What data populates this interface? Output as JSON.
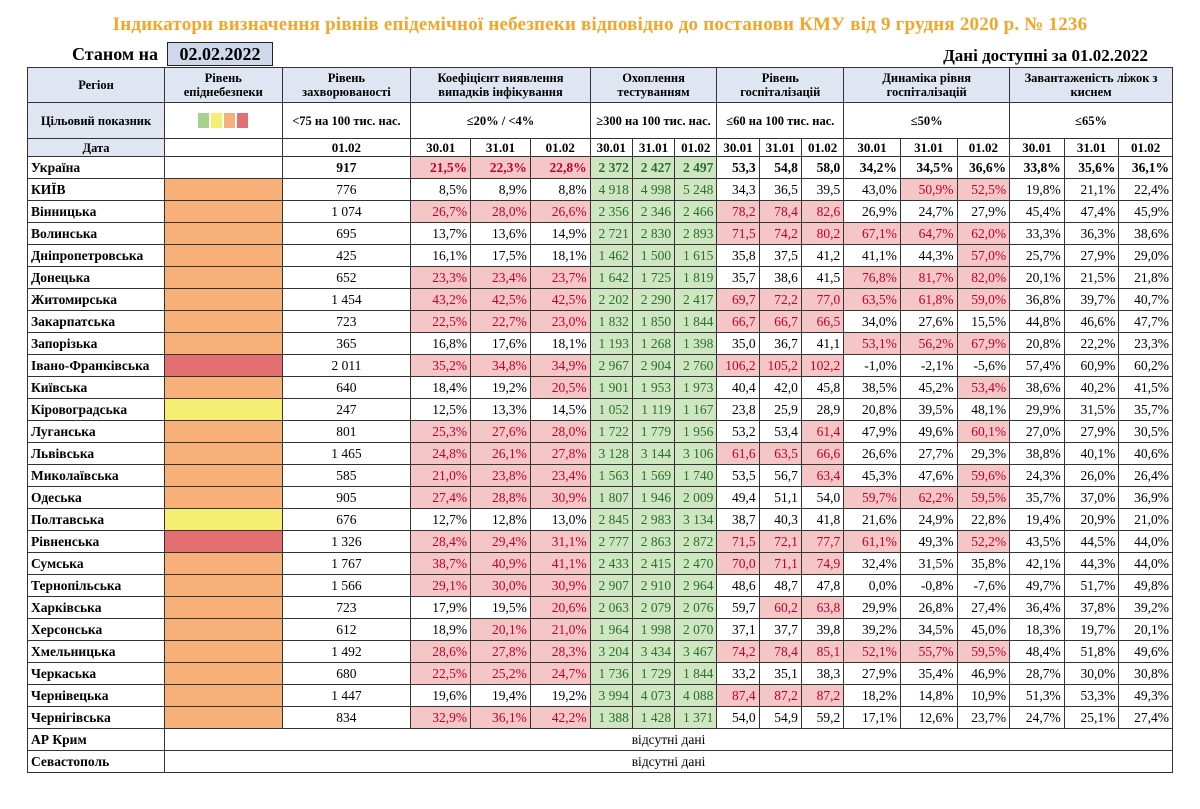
{
  "title": "Індикатори визначення рівнів епідемічної небезпеки відповідно до постанови КМУ від 9 грудня 2020 р. № 1236",
  "asof_label": "Станом на",
  "asof_date": "02.02.2022",
  "available": "Дані доступні за  01.02.2022",
  "colors": {
    "orange": "#f6b078",
    "red": "#e46f72",
    "yellow": "#f4ef72",
    "green": "#a8d18d",
    "pink": "#f4c6c6"
  },
  "header": {
    "region": "Регіон",
    "level": "Рівень епіднебезпеки",
    "morbidity": "Рівень захворюваності",
    "detection": "Коефіцієнт виявлення випадків інфікування",
    "testing": "Охоплення тестуванням",
    "hosp": "Рівень госпіталізацій",
    "hosp_dyn": "Динаміка рівня госпіталізацій",
    "beds": "Завантаженість ліжок з киснем",
    "target_label": "Цільовий показник",
    "morbidity_target": "<75 на 100 тис. нас.",
    "detection_target": "≤20% / <4%",
    "testing_target": "≥300 на 100 тис. нас.",
    "hosp_target": "≤60 на 100 тис. нас.",
    "hosp_dyn_target": "≤50%",
    "beds_target": "≤65%",
    "date_label": "Дата",
    "d_0102": "01.02",
    "d_3001": "30.01",
    "d_3101": "31.01"
  },
  "legend": [
    "#a8d18d",
    "#f4ef72",
    "#f6b078",
    "#e46f72"
  ],
  "rows": [
    {
      "name": "Україна",
      "level": "white",
      "m": "917",
      "det": [
        "21,5%",
        "22,3%",
        "22,8%"
      ],
      "dr": [
        1,
        1,
        1
      ],
      "tst": [
        "2 372",
        "2 427",
        "2 497"
      ],
      "tg": [
        1,
        1,
        1
      ],
      "h": [
        "53,3",
        "54,8",
        "58,0"
      ],
      "hr": [
        0,
        0,
        0
      ],
      "hd": [
        "34,2%",
        "34,5%",
        "36,6%"
      ],
      "hdr": [
        0,
        0,
        0
      ],
      "b": [
        "33,8%",
        "35,6%",
        "36,1%"
      ]
    },
    {
      "name": "КИЇВ",
      "level": "orange",
      "m": "776",
      "det": [
        "8,5%",
        "8,9%",
        "8,8%"
      ],
      "dr": [
        0,
        0,
        0
      ],
      "tst": [
        "4 918",
        "4 998",
        "5 248"
      ],
      "tg": [
        1,
        1,
        1
      ],
      "h": [
        "34,3",
        "36,5",
        "39,5"
      ],
      "hr": [
        0,
        0,
        0
      ],
      "hd": [
        "43,0%",
        "50,9%",
        "52,5%"
      ],
      "hdr": [
        0,
        1,
        1
      ],
      "b": [
        "19,8%",
        "21,1%",
        "22,4%"
      ]
    },
    {
      "name": "Вінницька",
      "level": "orange",
      "m": "1 074",
      "det": [
        "26,7%",
        "28,0%",
        "26,6%"
      ],
      "dr": [
        1,
        1,
        1
      ],
      "tst": [
        "2 356",
        "2 346",
        "2 466"
      ],
      "tg": [
        1,
        1,
        1
      ],
      "h": [
        "78,2",
        "78,4",
        "82,6"
      ],
      "hr": [
        1,
        1,
        1
      ],
      "hd": [
        "26,9%",
        "24,7%",
        "27,9%"
      ],
      "hdr": [
        0,
        0,
        0
      ],
      "b": [
        "45,4%",
        "47,4%",
        "45,9%"
      ]
    },
    {
      "name": "Волинська",
      "level": "orange",
      "m": "695",
      "det": [
        "13,7%",
        "13,6%",
        "14,9%"
      ],
      "dr": [
        0,
        0,
        0
      ],
      "tst": [
        "2 721",
        "2 830",
        "2 893"
      ],
      "tg": [
        1,
        1,
        1
      ],
      "h": [
        "71,5",
        "74,2",
        "80,2"
      ],
      "hr": [
        1,
        1,
        1
      ],
      "hd": [
        "67,1%",
        "64,7%",
        "62,0%"
      ],
      "hdr": [
        1,
        1,
        1
      ],
      "b": [
        "33,3%",
        "36,3%",
        "38,6%"
      ]
    },
    {
      "name": "Дніпропетровська",
      "level": "orange",
      "m": "425",
      "det": [
        "16,1%",
        "17,5%",
        "18,1%"
      ],
      "dr": [
        0,
        0,
        0
      ],
      "tst": [
        "1 462",
        "1 500",
        "1 615"
      ],
      "tg": [
        1,
        1,
        1
      ],
      "h": [
        "35,8",
        "37,5",
        "41,2"
      ],
      "hr": [
        0,
        0,
        0
      ],
      "hd": [
        "41,1%",
        "44,3%",
        "57,0%"
      ],
      "hdr": [
        0,
        0,
        1
      ],
      "b": [
        "25,7%",
        "27,9%",
        "29,0%"
      ]
    },
    {
      "name": "Донецька",
      "level": "orange",
      "m": "652",
      "det": [
        "23,3%",
        "23,4%",
        "23,7%"
      ],
      "dr": [
        1,
        1,
        1
      ],
      "tst": [
        "1 642",
        "1 725",
        "1 819"
      ],
      "tg": [
        1,
        1,
        1
      ],
      "h": [
        "35,7",
        "38,6",
        "41,5"
      ],
      "hr": [
        0,
        0,
        0
      ],
      "hd": [
        "76,8%",
        "81,7%",
        "82,0%"
      ],
      "hdr": [
        1,
        1,
        1
      ],
      "b": [
        "20,1%",
        "21,5%",
        "21,8%"
      ]
    },
    {
      "name": "Житомирська",
      "level": "orange",
      "m": "1 454",
      "det": [
        "43,2%",
        "42,5%",
        "42,5%"
      ],
      "dr": [
        1,
        1,
        1
      ],
      "tst": [
        "2 202",
        "2 290",
        "2 417"
      ],
      "tg": [
        1,
        1,
        1
      ],
      "h": [
        "69,7",
        "72,2",
        "77,0"
      ],
      "hr": [
        1,
        1,
        1
      ],
      "hd": [
        "63,5%",
        "61,8%",
        "59,0%"
      ],
      "hdr": [
        1,
        1,
        1
      ],
      "b": [
        "36,8%",
        "39,7%",
        "40,7%"
      ]
    },
    {
      "name": "Закарпатська",
      "level": "orange",
      "m": "723",
      "det": [
        "22,5%",
        "22,7%",
        "23,0%"
      ],
      "dr": [
        1,
        1,
        1
      ],
      "tst": [
        "1 832",
        "1 850",
        "1 844"
      ],
      "tg": [
        1,
        1,
        1
      ],
      "h": [
        "66,7",
        "66,7",
        "66,5"
      ],
      "hr": [
        1,
        1,
        1
      ],
      "hd": [
        "34,0%",
        "27,6%",
        "15,5%"
      ],
      "hdr": [
        0,
        0,
        0
      ],
      "b": [
        "44,8%",
        "46,6%",
        "47,7%"
      ]
    },
    {
      "name": "Запорізька",
      "level": "orange",
      "m": "365",
      "det": [
        "16,8%",
        "17,6%",
        "18,1%"
      ],
      "dr": [
        0,
        0,
        0
      ],
      "tst": [
        "1 193",
        "1 268",
        "1 398"
      ],
      "tg": [
        1,
        1,
        1
      ],
      "h": [
        "35,0",
        "36,7",
        "41,1"
      ],
      "hr": [
        0,
        0,
        0
      ],
      "hd": [
        "53,1%",
        "56,2%",
        "67,9%"
      ],
      "hdr": [
        1,
        1,
        1
      ],
      "b": [
        "20,8%",
        "22,2%",
        "23,3%"
      ]
    },
    {
      "name": "Івано-Франківська",
      "level": "red",
      "m": "2 011",
      "det": [
        "35,2%",
        "34,8%",
        "34,9%"
      ],
      "dr": [
        1,
        1,
        1
      ],
      "tst": [
        "2 967",
        "2 904",
        "2 760"
      ],
      "tg": [
        1,
        1,
        1
      ],
      "h": [
        "106,2",
        "105,2",
        "102,2"
      ],
      "hr": [
        1,
        1,
        1
      ],
      "hd": [
        "-1,0%",
        "-2,1%",
        "-5,6%"
      ],
      "hdr": [
        0,
        0,
        0
      ],
      "b": [
        "57,4%",
        "60,9%",
        "60,2%"
      ]
    },
    {
      "name": "Київська",
      "level": "orange",
      "m": "640",
      "det": [
        "18,4%",
        "19,2%",
        "20,5%"
      ],
      "dr": [
        0,
        0,
        1
      ],
      "tst": [
        "1 901",
        "1 953",
        "1 973"
      ],
      "tg": [
        1,
        1,
        1
      ],
      "h": [
        "40,4",
        "42,0",
        "45,8"
      ],
      "hr": [
        0,
        0,
        0
      ],
      "hd": [
        "38,5%",
        "45,2%",
        "53,4%"
      ],
      "hdr": [
        0,
        0,
        1
      ],
      "b": [
        "38,6%",
        "40,2%",
        "41,5%"
      ]
    },
    {
      "name": "Кіровоградська",
      "level": "yellow",
      "m": "247",
      "det": [
        "12,5%",
        "13,3%",
        "14,5%"
      ],
      "dr": [
        0,
        0,
        0
      ],
      "tst": [
        "1 052",
        "1 119",
        "1 167"
      ],
      "tg": [
        1,
        1,
        1
      ],
      "h": [
        "23,8",
        "25,9",
        "28,9"
      ],
      "hr": [
        0,
        0,
        0
      ],
      "hd": [
        "20,8%",
        "39,5%",
        "48,1%"
      ],
      "hdr": [
        0,
        0,
        0
      ],
      "b": [
        "29,9%",
        "31,5%",
        "35,7%"
      ]
    },
    {
      "name": "Луганська",
      "level": "orange",
      "m": "801",
      "det": [
        "25,3%",
        "27,6%",
        "28,0%"
      ],
      "dr": [
        1,
        1,
        1
      ],
      "tst": [
        "1 722",
        "1 779",
        "1 956"
      ],
      "tg": [
        1,
        1,
        1
      ],
      "h": [
        "53,2",
        "53,4",
        "61,4"
      ],
      "hr": [
        0,
        0,
        1
      ],
      "hd": [
        "47,9%",
        "49,6%",
        "60,1%"
      ],
      "hdr": [
        0,
        0,
        1
      ],
      "b": [
        "27,0%",
        "27,9%",
        "30,5%"
      ]
    },
    {
      "name": "Львівська",
      "level": "orange",
      "m": "1 465",
      "det": [
        "24,8%",
        "26,1%",
        "27,8%"
      ],
      "dr": [
        1,
        1,
        1
      ],
      "tst": [
        "3 128",
        "3 144",
        "3 106"
      ],
      "tg": [
        1,
        1,
        1
      ],
      "h": [
        "61,6",
        "63,5",
        "66,6"
      ],
      "hr": [
        1,
        1,
        1
      ],
      "hd": [
        "26,6%",
        "27,7%",
        "29,3%"
      ],
      "hdr": [
        0,
        0,
        0
      ],
      "b": [
        "38,8%",
        "40,1%",
        "40,6%"
      ]
    },
    {
      "name": "Миколаївська",
      "level": "orange",
      "m": "585",
      "det": [
        "21,0%",
        "23,8%",
        "23,4%"
      ],
      "dr": [
        1,
        1,
        1
      ],
      "tst": [
        "1 563",
        "1 569",
        "1 740"
      ],
      "tg": [
        1,
        1,
        1
      ],
      "h": [
        "53,5",
        "56,7",
        "63,4"
      ],
      "hr": [
        0,
        0,
        1
      ],
      "hd": [
        "45,3%",
        "47,6%",
        "59,6%"
      ],
      "hdr": [
        0,
        0,
        1
      ],
      "b": [
        "24,3%",
        "26,0%",
        "26,4%"
      ]
    },
    {
      "name": "Одеська",
      "level": "orange",
      "m": "905",
      "det": [
        "27,4%",
        "28,8%",
        "30,9%"
      ],
      "dr": [
        1,
        1,
        1
      ],
      "tst": [
        "1 807",
        "1 946",
        "2 009"
      ],
      "tg": [
        1,
        1,
        1
      ],
      "h": [
        "49,4",
        "51,1",
        "54,0"
      ],
      "hr": [
        0,
        0,
        0
      ],
      "hd": [
        "59,7%",
        "62,2%",
        "59,5%"
      ],
      "hdr": [
        1,
        1,
        1
      ],
      "b": [
        "35,7%",
        "37,0%",
        "36,9%"
      ]
    },
    {
      "name": "Полтавська",
      "level": "yellow",
      "m": "676",
      "det": [
        "12,7%",
        "12,8%",
        "13,0%"
      ],
      "dr": [
        0,
        0,
        0
      ],
      "tst": [
        "2 845",
        "2 983",
        "3 134"
      ],
      "tg": [
        1,
        1,
        1
      ],
      "h": [
        "38,7",
        "40,3",
        "41,8"
      ],
      "hr": [
        0,
        0,
        0
      ],
      "hd": [
        "21,6%",
        "24,9%",
        "22,8%"
      ],
      "hdr": [
        0,
        0,
        0
      ],
      "b": [
        "19,4%",
        "20,9%",
        "21,0%"
      ]
    },
    {
      "name": "Рівненська",
      "level": "red",
      "m": "1 326",
      "det": [
        "28,4%",
        "29,4%",
        "31,1%"
      ],
      "dr": [
        1,
        1,
        1
      ],
      "tst": [
        "2 777",
        "2 863",
        "2 872"
      ],
      "tg": [
        1,
        1,
        1
      ],
      "h": [
        "71,5",
        "72,1",
        "77,7"
      ],
      "hr": [
        1,
        1,
        1
      ],
      "hd": [
        "61,1%",
        "49,3%",
        "52,2%"
      ],
      "hdr": [
        1,
        0,
        1
      ],
      "b": [
        "43,5%",
        "44,5%",
        "44,0%"
      ]
    },
    {
      "name": "Сумська",
      "level": "orange",
      "m": "1 767",
      "det": [
        "38,7%",
        "40,9%",
        "41,1%"
      ],
      "dr": [
        1,
        1,
        1
      ],
      "tst": [
        "2 433",
        "2 415",
        "2 470"
      ],
      "tg": [
        1,
        1,
        1
      ],
      "h": [
        "70,0",
        "71,1",
        "74,9"
      ],
      "hr": [
        1,
        1,
        1
      ],
      "hd": [
        "32,4%",
        "31,5%",
        "35,8%"
      ],
      "hdr": [
        0,
        0,
        0
      ],
      "b": [
        "42,1%",
        "44,3%",
        "44,0%"
      ]
    },
    {
      "name": "Тернопільська",
      "level": "orange",
      "m": "1 566",
      "det": [
        "29,1%",
        "30,0%",
        "30,9%"
      ],
      "dr": [
        1,
        1,
        1
      ],
      "tst": [
        "2 907",
        "2 910",
        "2 964"
      ],
      "tg": [
        1,
        1,
        1
      ],
      "h": [
        "48,6",
        "48,7",
        "47,8"
      ],
      "hr": [
        0,
        0,
        0
      ],
      "hd": [
        "0,0%",
        "-0,8%",
        "-7,6%"
      ],
      "hdr": [
        0,
        0,
        0
      ],
      "b": [
        "49,7%",
        "51,7%",
        "49,8%"
      ]
    },
    {
      "name": "Харківська",
      "level": "orange",
      "m": "723",
      "det": [
        "17,9%",
        "19,5%",
        "20,6%"
      ],
      "dr": [
        0,
        0,
        1
      ],
      "tst": [
        "2 063",
        "2 079",
        "2 076"
      ],
      "tg": [
        1,
        1,
        1
      ],
      "h": [
        "59,7",
        "60,2",
        "63,8"
      ],
      "hr": [
        0,
        1,
        1
      ],
      "hd": [
        "29,9%",
        "26,8%",
        "27,4%"
      ],
      "hdr": [
        0,
        0,
        0
      ],
      "b": [
        "36,4%",
        "37,8%",
        "39,2%"
      ]
    },
    {
      "name": "Херсонська",
      "level": "orange",
      "m": "612",
      "det": [
        "18,9%",
        "20,1%",
        "21,0%"
      ],
      "dr": [
        0,
        1,
        1
      ],
      "tst": [
        "1 964",
        "1 998",
        "2 070"
      ],
      "tg": [
        1,
        1,
        1
      ],
      "h": [
        "37,1",
        "37,7",
        "39,8"
      ],
      "hr": [
        0,
        0,
        0
      ],
      "hd": [
        "39,2%",
        "34,5%",
        "45,0%"
      ],
      "hdr": [
        0,
        0,
        0
      ],
      "b": [
        "18,3%",
        "19,7%",
        "20,1%"
      ]
    },
    {
      "name": "Хмельницька",
      "level": "orange",
      "m": "1 492",
      "det": [
        "28,6%",
        "27,8%",
        "28,3%"
      ],
      "dr": [
        1,
        1,
        1
      ],
      "tst": [
        "3 204",
        "3 434",
        "3 467"
      ],
      "tg": [
        1,
        1,
        1
      ],
      "h": [
        "74,2",
        "78,4",
        "85,1"
      ],
      "hr": [
        1,
        1,
        1
      ],
      "hd": [
        "52,1%",
        "55,7%",
        "59,5%"
      ],
      "hdr": [
        1,
        1,
        1
      ],
      "b": [
        "48,4%",
        "51,8%",
        "49,6%"
      ]
    },
    {
      "name": "Черкаська",
      "level": "orange",
      "m": "680",
      "det": [
        "22,5%",
        "25,2%",
        "24,7%"
      ],
      "dr": [
        1,
        1,
        1
      ],
      "tst": [
        "1 736",
        "1 729",
        "1 844"
      ],
      "tg": [
        1,
        1,
        1
      ],
      "h": [
        "33,2",
        "35,1",
        "38,3"
      ],
      "hr": [
        0,
        0,
        0
      ],
      "hd": [
        "27,9%",
        "35,4%",
        "46,9%"
      ],
      "hdr": [
        0,
        0,
        0
      ],
      "b": [
        "28,7%",
        "30,0%",
        "30,8%"
      ]
    },
    {
      "name": "Чернівецька",
      "level": "orange",
      "m": "1 447",
      "det": [
        "19,6%",
        "19,4%",
        "19,2%"
      ],
      "dr": [
        0,
        0,
        0
      ],
      "tst": [
        "3 994",
        "4 073",
        "4 088"
      ],
      "tg": [
        1,
        1,
        1
      ],
      "h": [
        "87,4",
        "87,2",
        "87,2"
      ],
      "hr": [
        1,
        1,
        1
      ],
      "hd": [
        "18,2%",
        "14,8%",
        "10,9%"
      ],
      "hdr": [
        0,
        0,
        0
      ],
      "b": [
        "51,3%",
        "53,3%",
        "49,3%"
      ]
    },
    {
      "name": "Чернігівська",
      "level": "orange",
      "m": "834",
      "det": [
        "32,9%",
        "36,1%",
        "42,2%"
      ],
      "dr": [
        1,
        1,
        1
      ],
      "tst": [
        "1 388",
        "1 428",
        "1 371"
      ],
      "tg": [
        1,
        1,
        1
      ],
      "h": [
        "54,0",
        "54,9",
        "59,2"
      ],
      "hr": [
        0,
        0,
        0
      ],
      "hd": [
        "17,1%",
        "12,6%",
        "23,7%"
      ],
      "hdr": [
        0,
        0,
        0
      ],
      "b": [
        "24,7%",
        "25,1%",
        "27,4%"
      ]
    }
  ],
  "missing": [
    {
      "name": "АР Крим",
      "text": "відсутні дані"
    },
    {
      "name": "Севастополь",
      "text": "відсутні дані"
    }
  ]
}
